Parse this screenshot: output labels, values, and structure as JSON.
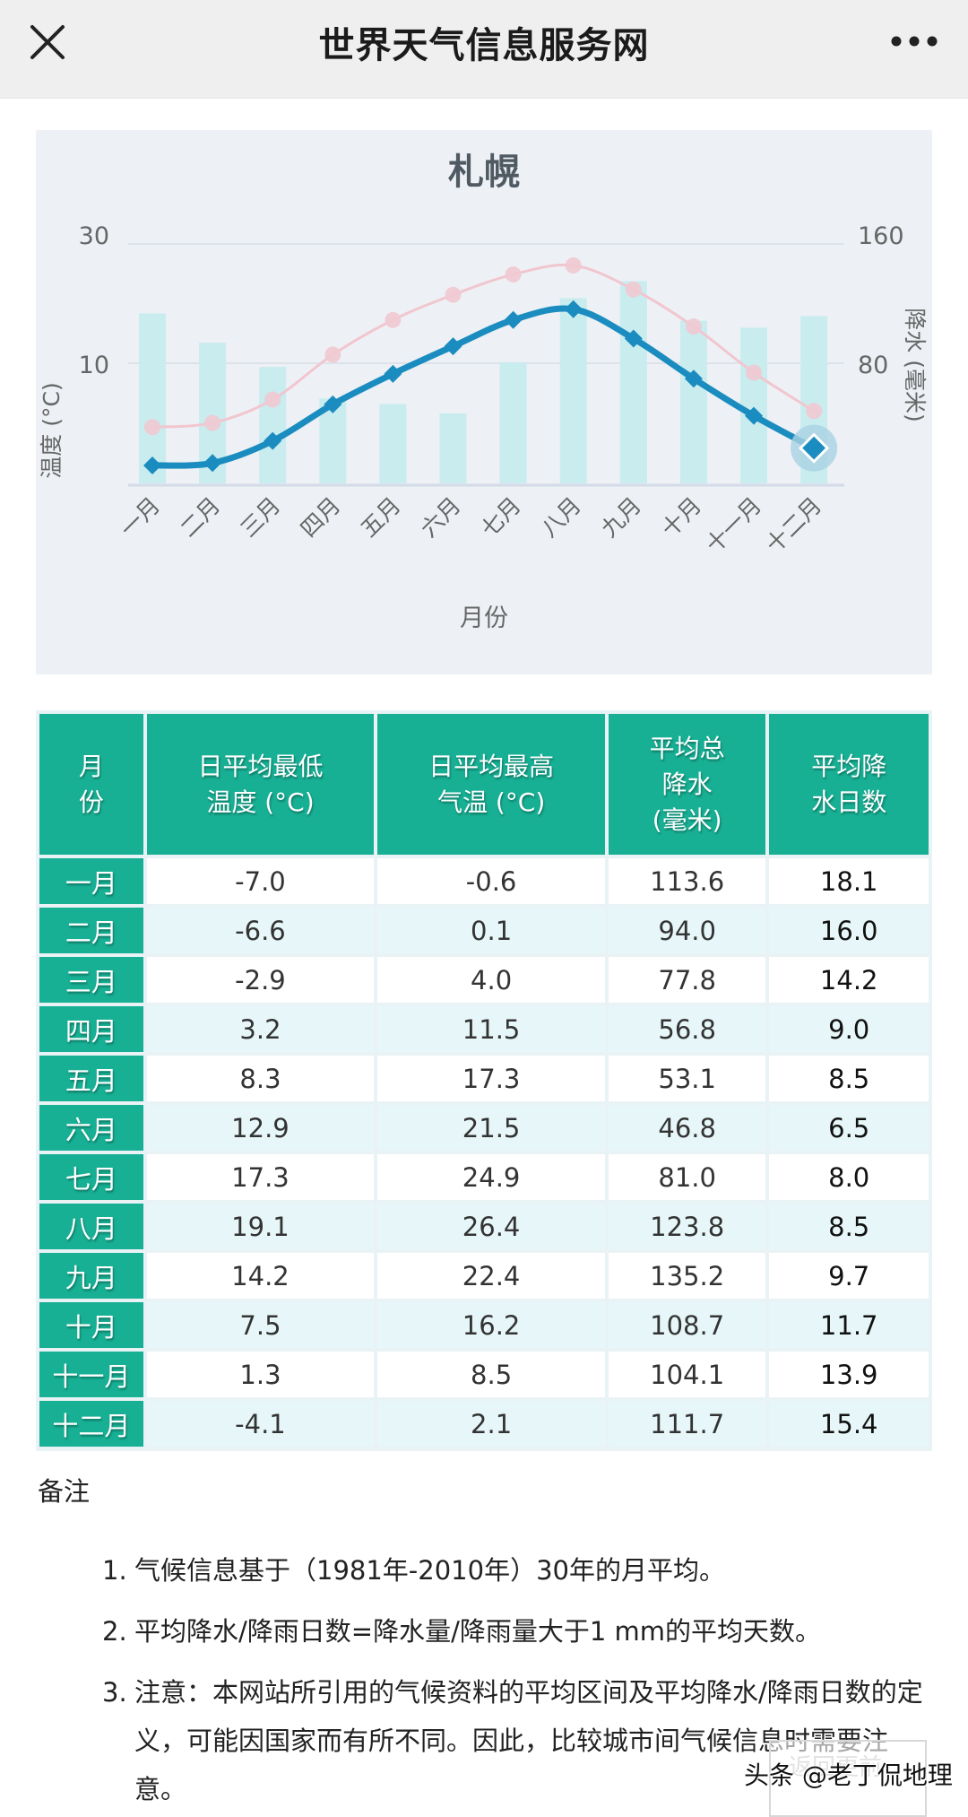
{
  "topbar": {
    "title": "世界天气信息服务网",
    "close_icon": "close-icon",
    "more_icon": "more-icon"
  },
  "chart": {
    "title": "札幌",
    "y_left_label": "温度 (°C)",
    "y_right_label": "降水 (毫米)",
    "x_label": "月份",
    "y_left_ticks": [
      "30",
      "10"
    ],
    "y_right_ticks": [
      "160",
      "80"
    ],
    "months": [
      "一月",
      "二月",
      "三月",
      "四月",
      "五月",
      "六月",
      "七月",
      "八月",
      "九月",
      "十月",
      "十一月",
      "十二月"
    ]
  },
  "chart_data": {
    "type": "bar",
    "title": "札幌",
    "xlabel": "月份",
    "ylabel": "温度 (°C)",
    "y2label": "降水 (毫米)",
    "categories": [
      "一月",
      "二月",
      "三月",
      "四月",
      "五月",
      "六月",
      "七月",
      "八月",
      "九月",
      "十月",
      "十一月",
      "十二月"
    ],
    "series": [
      {
        "name": "平均总降水 (毫米)",
        "type": "bar",
        "axis": "right",
        "values": [
          113.6,
          94.0,
          77.8,
          56.8,
          53.1,
          46.8,
          81.0,
          123.8,
          135.2,
          108.7,
          104.1,
          111.7
        ]
      },
      {
        "name": "日平均最低温度 (°C)",
        "type": "line",
        "axis": "left",
        "values": [
          -7.0,
          -6.6,
          -2.9,
          3.2,
          8.3,
          12.9,
          17.3,
          19.1,
          14.2,
          7.5,
          1.3,
          -4.1
        ]
      },
      {
        "name": "日平均最高气温 (°C)",
        "type": "line",
        "axis": "left",
        "values": [
          -0.6,
          0.1,
          4.0,
          11.5,
          17.3,
          21.5,
          24.9,
          26.4,
          22.4,
          16.2,
          8.5,
          2.1
        ]
      }
    ],
    "ylim": [
      -10,
      30
    ],
    "y2lim": [
      0,
      160
    ],
    "y_ticks_shown": [
      30,
      10
    ],
    "y2_ticks_shown": [
      160,
      80
    ],
    "grid": true,
    "legend": "none"
  },
  "colors": {
    "header_green": "#17b094",
    "bar": "#c9ecef",
    "min_line": "#1a8cbf",
    "max_line": "#f1c6cf",
    "chart_bg": "#edf1f5"
  },
  "table": {
    "headers": [
      [
        "月",
        "份"
      ],
      [
        "日平均最低",
        "温度 (°C)"
      ],
      [
        "日平均最高",
        "气温 (°C)"
      ],
      [
        "平均总",
        "降水",
        "(毫米)"
      ],
      [
        "平均降",
        "水日数"
      ]
    ],
    "rows": [
      {
        "month": "一月",
        "min": "-7.0",
        "max": "-0.6",
        "precip": "113.6",
        "days": "18.1"
      },
      {
        "month": "二月",
        "min": "-6.6",
        "max": "0.1",
        "precip": "94.0",
        "days": "16.0"
      },
      {
        "month": "三月",
        "min": "-2.9",
        "max": "4.0",
        "precip": "77.8",
        "days": "14.2"
      },
      {
        "month": "四月",
        "min": "3.2",
        "max": "11.5",
        "precip": "56.8",
        "days": "9.0"
      },
      {
        "month": "五月",
        "min": "8.3",
        "max": "17.3",
        "precip": "53.1",
        "days": "8.5"
      },
      {
        "month": "六月",
        "min": "12.9",
        "max": "21.5",
        "precip": "46.8",
        "days": "6.5"
      },
      {
        "month": "七月",
        "min": "17.3",
        "max": "24.9",
        "precip": "81.0",
        "days": "8.0"
      },
      {
        "month": "八月",
        "min": "19.1",
        "max": "26.4",
        "precip": "123.8",
        "days": "8.5"
      },
      {
        "month": "九月",
        "min": "14.2",
        "max": "22.4",
        "precip": "135.2",
        "days": "9.7"
      },
      {
        "month": "十月",
        "min": "7.5",
        "max": "16.2",
        "precip": "108.7",
        "days": "11.7"
      },
      {
        "month": "十一月",
        "min": "1.3",
        "max": "8.5",
        "precip": "104.1",
        "days": "13.9"
      },
      {
        "month": "十二月",
        "min": "-4.1",
        "max": "2.1",
        "precip": "111.7",
        "days": "15.4"
      }
    ]
  },
  "notes": {
    "heading": "备注",
    "items": [
      {
        "num": "1.",
        "text": "气候信息基于（1981年-2010年）30年的月平均。"
      },
      {
        "num": "2.",
        "text": "平均降水/降雨日数=降水量/降雨量大于1 mm的平均天数。"
      },
      {
        "num": "3.",
        "text": "注意：本网站所引用的气候资料的平均区间及平均降水/降雨日数的定义，可能因国家而有所不同。因此，比较城市间气候信息时需要注意。"
      }
    ]
  },
  "watermark": {
    "label": "头条 @老丁侃地理",
    "faint": "返回更前"
  }
}
